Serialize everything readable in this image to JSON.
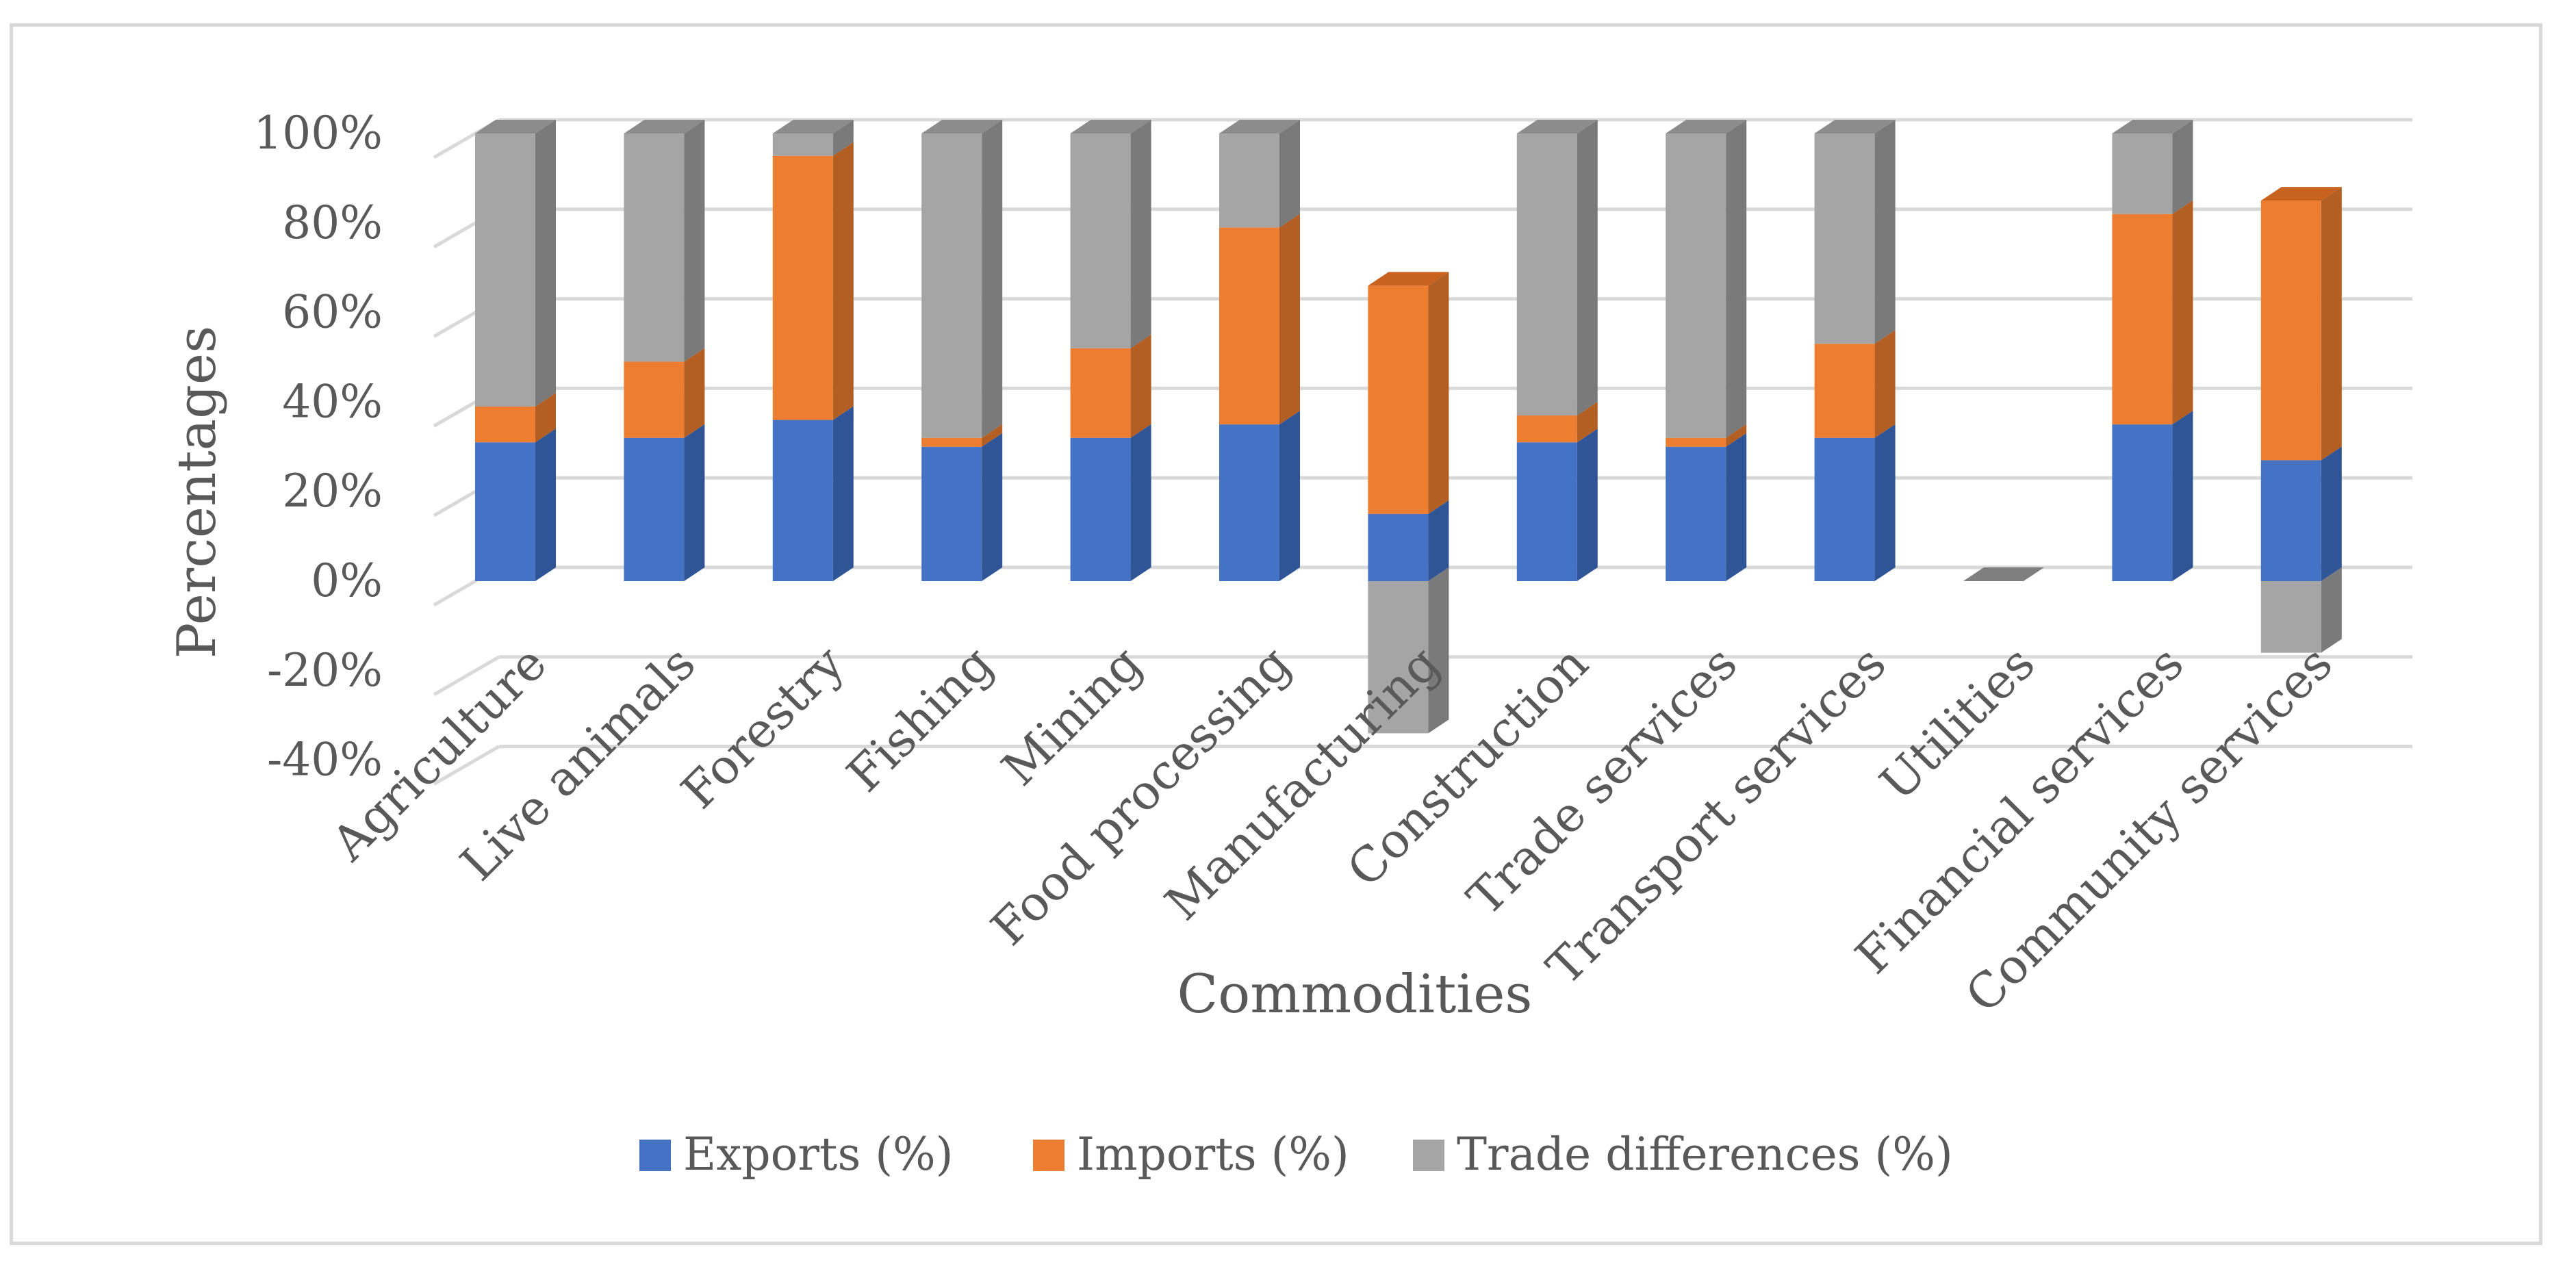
{
  "chart_data": {
    "type": "bar",
    "stacked": true,
    "style": "3d-stacked-column",
    "title": "",
    "xlabel": "Commodities",
    "ylabel": "Percentages",
    "ylim": [
      -40,
      100
    ],
    "yticks": [
      -40,
      -20,
      0,
      20,
      40,
      60,
      80,
      100
    ],
    "ytick_labels": [
      "-40%",
      "-20%",
      "0%",
      "20%",
      "40%",
      "60%",
      "80%",
      "100%"
    ],
    "grid": true,
    "legend_position": "bottom",
    "categories": [
      "Agriculture",
      "Live animals",
      "Forestry",
      "Fishing",
      "Mining",
      "Food processing",
      "Manufacturing",
      "Construction",
      "Trade services",
      "Transport services",
      "Utilities",
      "Financial services",
      "Community services"
    ],
    "series": [
      {
        "name": "Exports (%)",
        "color": "#4472C4",
        "side_color": "#2F5597",
        "top_color": "#5B86D1",
        "values": [
          31,
          32,
          36,
          30,
          32,
          35,
          15,
          31,
          30,
          32,
          0,
          35,
          27
        ]
      },
      {
        "name": "Imports (%)",
        "color": "#ED7D31",
        "side_color": "#B35E22",
        "top_color": "#C7621F",
        "values": [
          8,
          17,
          59,
          2,
          20,
          44,
          51,
          6,
          2,
          21,
          0,
          47,
          58
        ]
      },
      {
        "name": "Trade differences (%)",
        "color": "#A5A5A5",
        "side_color": "#7A7A7A",
        "top_color": "#8C8C8C",
        "values": [
          61,
          51,
          5,
          68,
          48,
          21,
          -34,
          63,
          68,
          47,
          0,
          18,
          -16
        ]
      }
    ]
  }
}
